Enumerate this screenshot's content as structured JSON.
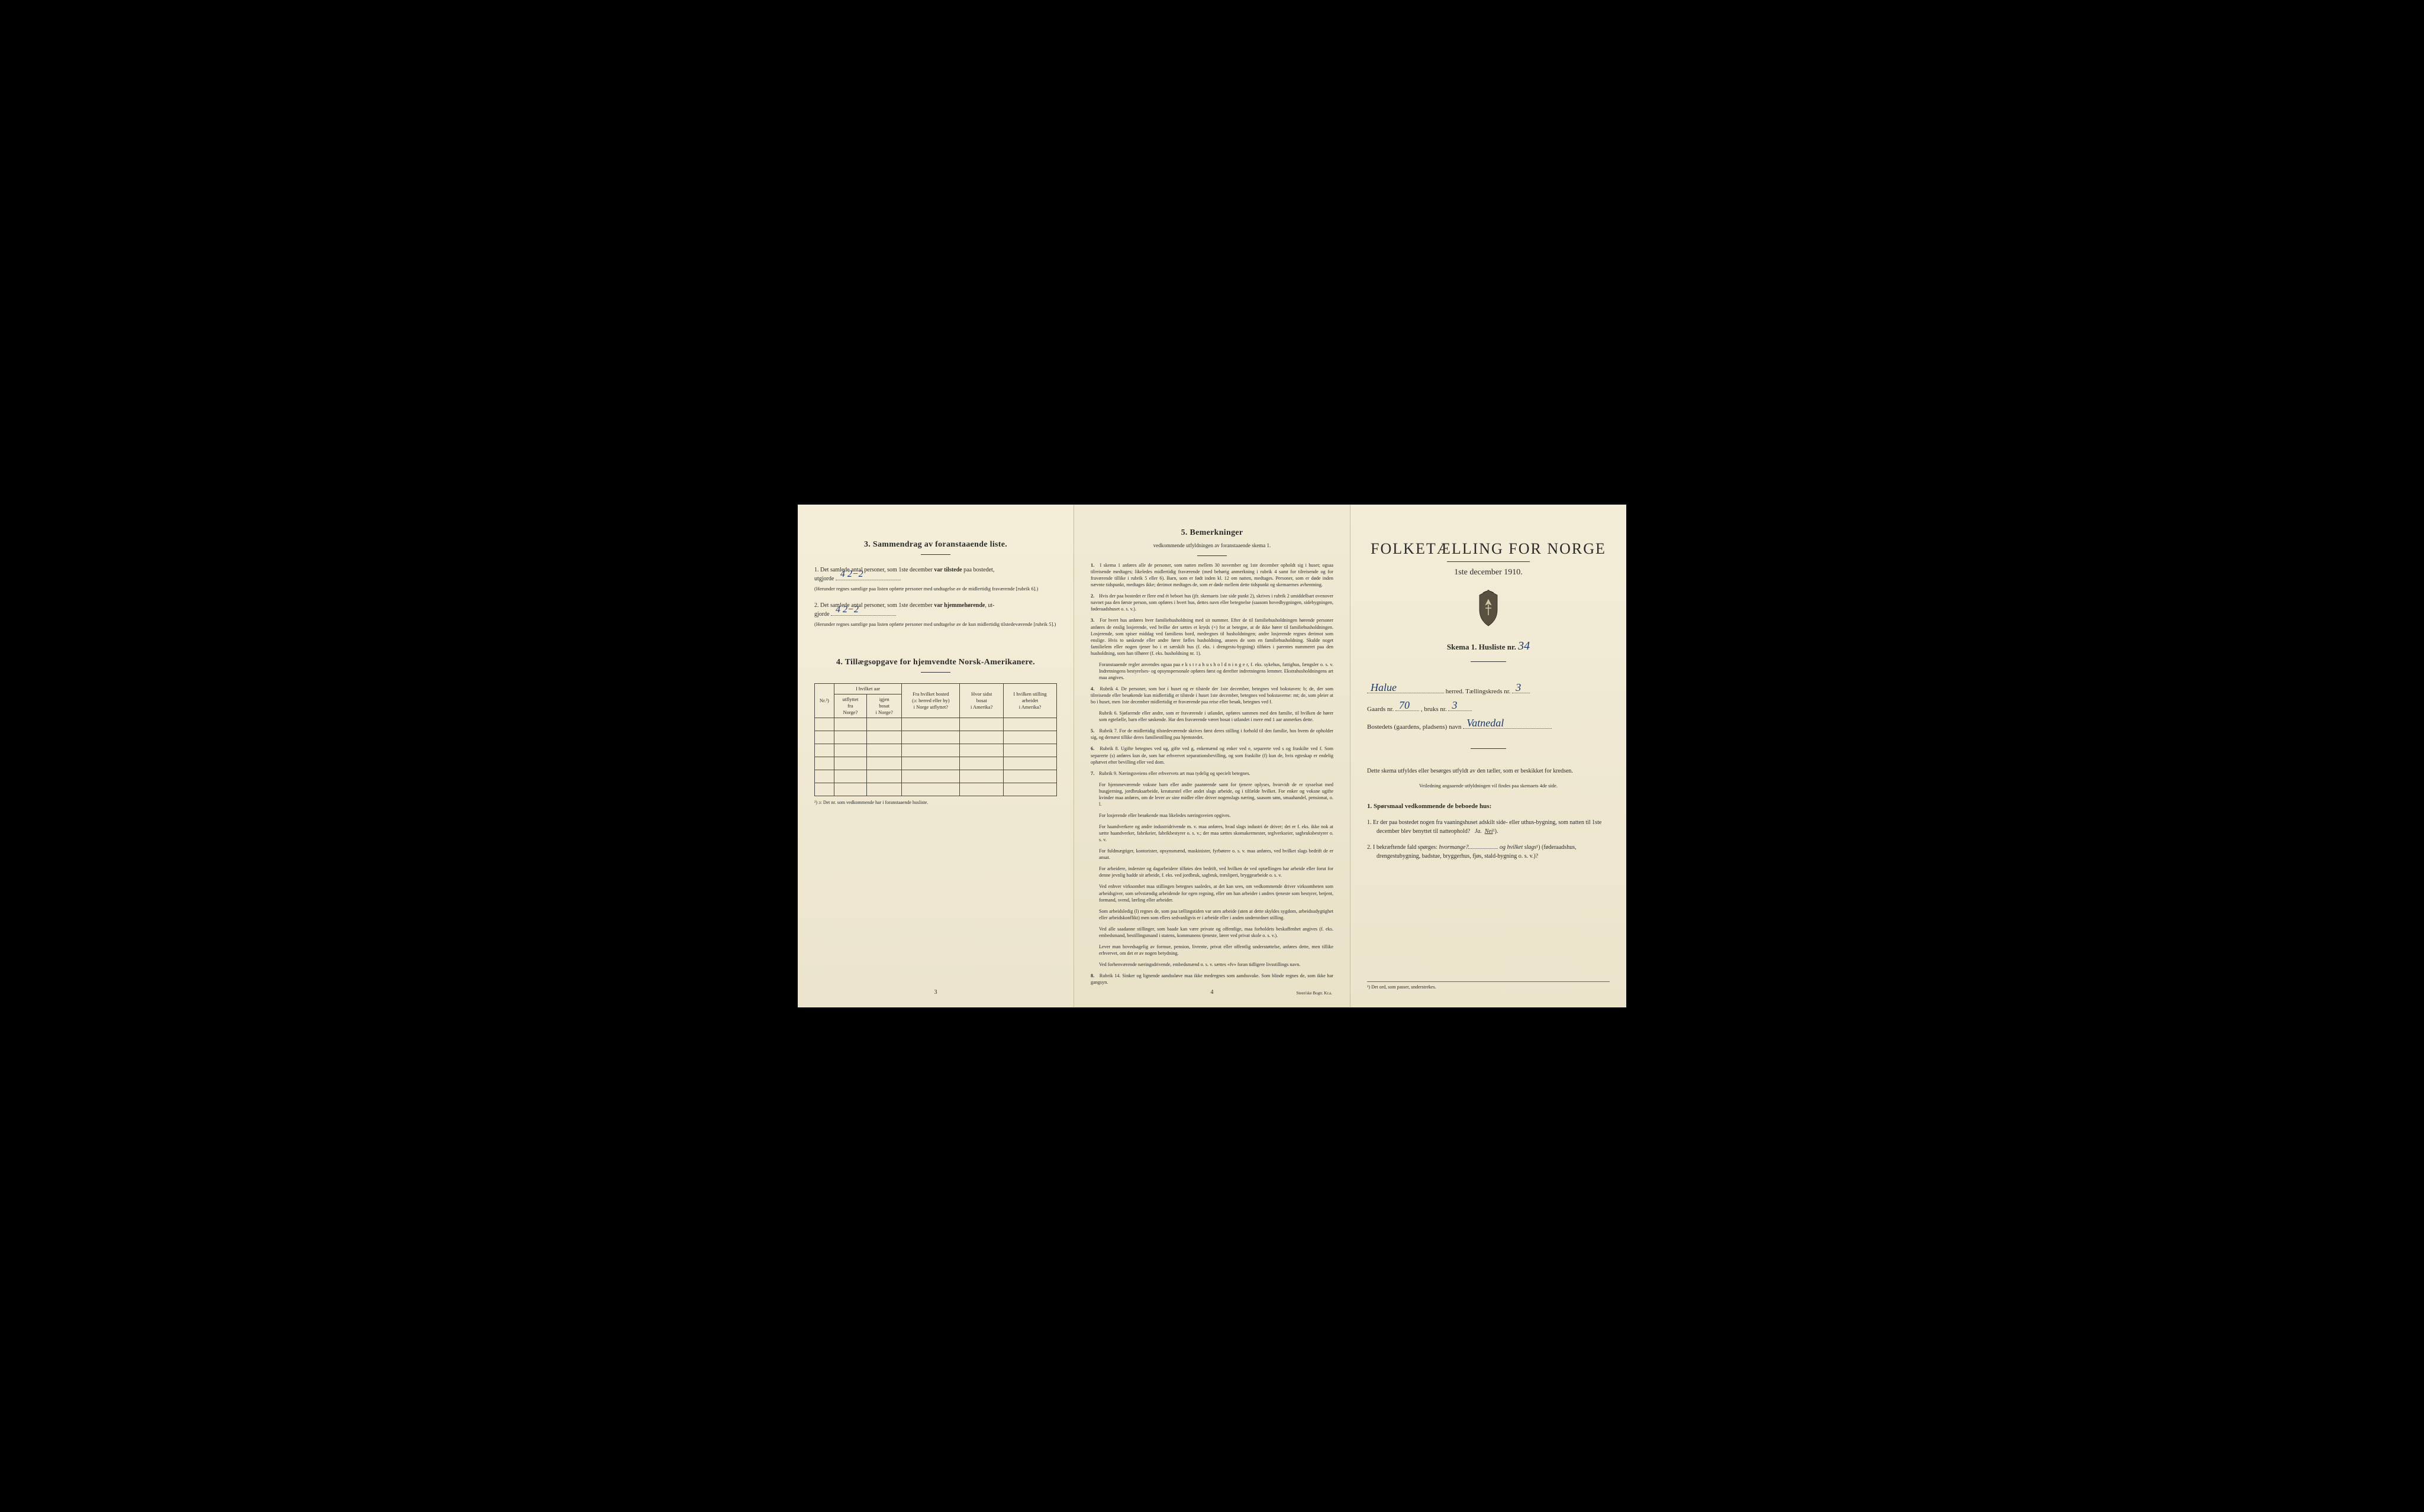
{
  "page1": {
    "section3_title": "3.   Sammendrag av foranstaaende liste.",
    "item1_prefix": "1.  Det samlede antal personer, som 1ste december ",
    "item1_bold": "var tilstede",
    "item1_suffix": " paa bostedet,",
    "utgjorde": "utgjorde",
    "hand1": "4   2−2",
    "note1": "(Herunder regnes samtlige paa listen opførte personer med undtagelse av de midlertidig fraværende [rubrik 6].)",
    "item2_prefix": "2.  Det samlede antal personer, som 1ste december ",
    "item2_bold": "var hjemmehørende",
    "item2_suffix": ", ut-",
    "hand2": "4   2−2",
    "note2": "(Herunder regnes samtlige paa listen opførte personer med undtagelse av de kun midlertidig tilstedeværende [rubrik 5].)",
    "section4_title": "4.  Tillægsopgave for hjemvendte Norsk-Amerikanere.",
    "table": {
      "col_nr": "Nr.²)",
      "col_group1": "I hvilket aar",
      "col_utflyttet": "utflyttet\nfra\nNorge?",
      "col_igjen": "igjen\nbosat\ni Norge?",
      "col_bosted": "Fra hvilket bosted\n(ɔ: herred eller by)\ni Norge utflyttet?",
      "col_sidst": "Hvor sidst\nbosat\ni Amerika?",
      "col_stilling": "I hvilken stilling\narbeidet\ni Amerika?"
    },
    "table_footnote": "²) ɔ: Det nr. som vedkommende har i foranstaaende husliste.",
    "page_num": "3"
  },
  "page2": {
    "title": "5.   Bemerkninger",
    "subtitle": "vedkommende utfyldningen av foranstaaende skema 1.",
    "items": [
      {
        "n": "1.",
        "t": "I skema 1 anføres alle de personer, som natten mellem 30 november og 1ste december opholdt sig i huset; ogsaa tilreisende medtages; likeledes midlertidig fraværende (med behørig anmerkning i rubrik 4 samt for tilreisende og for fraværende tillike i rubrik 5 eller 6). Barn, som er født inden kl. 12 om natten, medtages. Personer, som er døde inden nævnte tidspunkt, medtages ikke; derimot medtages de, som er døde mellem dette tidspunkt og skemaernes avhentning."
      },
      {
        "n": "2.",
        "t": "Hvis der paa bostedet er flere end ét beboet hus (jfr. skemaets 1ste side punkt 2), skrives i rubrik 2 umiddelbart ovenover navnet paa den første person, som opføres i hvert hus, dettes navn eller betegnelse (saasom hovedbygningen, sidebygningen, føderaadshuset o. s. v.)."
      },
      {
        "n": "3.",
        "t": "For hvert hus anføres hver familiehusholdning med sit nummer. Efter de til familiehusholdningen hørende personer anføres de enslig losjerende, ved hvilke der sættes et kryds (×) for at betegne, at de ikke hører til familiehusholdningen. Losjerende, som spiser middag ved familiens bord, medregnes til husholdningen; andre losjerende regnes derimot som enslige. Hvis to søskende eller andre fører fælles husholdning, ansees de som en familiehusholdning. Skulde noget familielem eller nogen tjener bo i et særskilt hus (f. eks. i drengestu-bygning) tilføies i parentes nummeret paa den husholdning, som han tilhører (f. eks. husholdning nr. 1).",
        "sub": "Foranstaaende regler anvendes ogsaa paa e k s t r a h u s h o l d n i n g e r, f. eks. sykehus, fattighus, fængsler o. s. v. Indretningens bestyrelses- og opsynspersonale opføres først og derefter indretningens lemmer. Ekstrahusholdningens art maa angives."
      },
      {
        "n": "4.",
        "t": "Rubrik 4. De personer, som bor i huset og er tilstede der 1ste december, betegnes ved bokstaven: b; de, der som tilreisende eller besøkende kun midlertidig er tilstede i huset 1ste december, betegnes ved bokstaverne: mt; de, som pleier at bo i huset, men 1ste december midlertidig er fraværende paa reise eller besøk, betegnes ved f.",
        "sub": "Rubrik 6. Sjøfarende eller andre, som er fraværende i utlandet, opføres sammen med den familie, til hvilken de hører som egtefælle, barn eller søskende.\nHar den fraværende været bosat i utlandet i mere end 1 aar anmerkes dette."
      },
      {
        "n": "5.",
        "t": "Rubrik 7. For de midlertidig tilstedeværende skrives først deres stilling i forhold til den familie, hos hvem de opholder sig, og dernæst tillike deres familiestilling paa hjemstedet."
      },
      {
        "n": "6.",
        "t": "Rubrik 8. Ugifte betegnes ved ug, gifte ved g, enkemænd og enker ved e, separerte ved s og fraskilte ved f. Som separerte (s) anføres kun de, som har erhvervet separationsbevilling, og som fraskilte (f) kun de, hvis egteskap er endelig ophævet efter bevilling eller ved dom."
      },
      {
        "n": "7.",
        "t": "Rubrik 9. Næringsveiens eller erhvervets art maa tydelig og specielt betegnes.",
        "subs": [
          "For hjemmeværende voksne barn eller andre paarørende samt for tjenere oplyses, hvorvidt de er sysselsat med husgjerning, jordbruksarbeide, kreaturstel eller andet slags arbeide, og i tilfælde hvilket. For enker og voksne ugifte kvinder maa anføres, om de lever av sine midler eller driver nogenslags næring, saasom søm, smaahandel, pensionat, o. l.",
          "For losjerende eller besøkende maa likeledes næringsveien opgives.",
          "For haandverkere og andre industridrivende m. v. maa anføres, hvad slags industri de driver; det er f. eks. ikke nok at sætte haandverker, fabrikeier, fabrikbestyrer o. s. v.; der maa sættes skomakermester, teglverkseier, sagbruksbestyrer o. s. v.",
          "For fuldmægtiger, kontorister, opsynsmænd, maskinister, fyrbøtere o. s. v. maa anføres, ved hvilket slags bedrift de er ansat.",
          "For arbeidere, inderster og dagarbeidere tilføies den bedrift, ved hvilken de ved optællingen har arbeide eller forut for denne jevnlig hadde sit arbeide, f. eks. ved jordbruk, sagbruk, træsliperi, bryggearbeide o. s. v.",
          "Ved enhver virksomhet maa stillingen betegnes saaledes, at det kan sees, om vedkommende driver virksomheten som arbeidsgiver, som selvstændig arbeidende for egen regning, eller om han arbeider i andres tjeneste som bestyrer, betjent, formand, svend, lærling eller arbeider.",
          "Som arbeidsledig (l) regnes de, som paa tællingstiden var uten arbeide (uten at dette skyldes sygdom, arbeidsudygtighet eller arbeidskonflikt) men som ellers sedvanligvis er i arbeide eller i anden underordnet stilling.",
          "Ved alle saadanne stillinger, som baade kan være private og offentlige, maa forholdets beskaffenhet angives (f. eks. embedsmand, bestillingsmand i statens, kommunens tjeneste, lærer ved privat skole o. s. v.).",
          "Lever man hovedsagelig av formue, pension, livrente, privat eller offentlig understøttelse, anføres dette, men tillike erhvervet, om det er av nogen betydning.",
          "Ved forhenværende næringsdrivende, embedsmænd o. s. v. sættes «fv» foran tidligere livsstillings navn."
        ]
      },
      {
        "n": "8.",
        "t": "Rubrik 14. Sinker og lignende aandssløve maa ikke medregnes som aandssvake. Som blinde regnes de, som ikke har gangsyn."
      }
    ],
    "page_num": "4",
    "printer": "Steen'ske Bogtr. Kr.a."
  },
  "page3": {
    "main_title": "FOLKETÆLLING FOR NORGE",
    "main_date": "1ste december 1910.",
    "skema": "Skema 1.   Husliste nr.",
    "husliste_nr": "34",
    "herred_hand": "Halue",
    "herred_label": "herred.   Tællingskreds nr.",
    "kreds_nr": "3",
    "gaards_label": "Gaards nr.",
    "gaards_nr": "70",
    "bruks_label": ", bruks nr.",
    "bruks_nr": "3",
    "bosted_label": "Bostedets (gaardens, pladsens) navn",
    "bosted_hand": "Vatnedal",
    "instruction": "Dette skema utfyldes eller besørges utfyldt av den tæller, som er beskikket for kredsen.",
    "sub_instruction": "Veiledning angaaende utfyldningen vil findes paa skemaets 4de side.",
    "q_title": "1. Spørsmaal vedkommende de beboede hus:",
    "q1": "1.  Er der paa bostedet nogen fra vaaningshuset adskilt side- eller uthus-bygning, som natten til 1ste december blev benyttet til natteophold?",
    "ja": "Ja.",
    "nei": "Nei",
    "nei_sup": "¹).",
    "q2_a": "2.  I bekræftende fald spørges: ",
    "q2_i1": "hvormange?",
    "q2_b": " og ",
    "q2_i2": "hvilket slags",
    "q2_sup": "¹)",
    "q2_c": " (føderaadshus, drengestubygning, badstue, bryggerhus, fjøs, stald-bygning o. s. v.)?",
    "footnote": "¹) Det ord, som passer, understrekes."
  }
}
